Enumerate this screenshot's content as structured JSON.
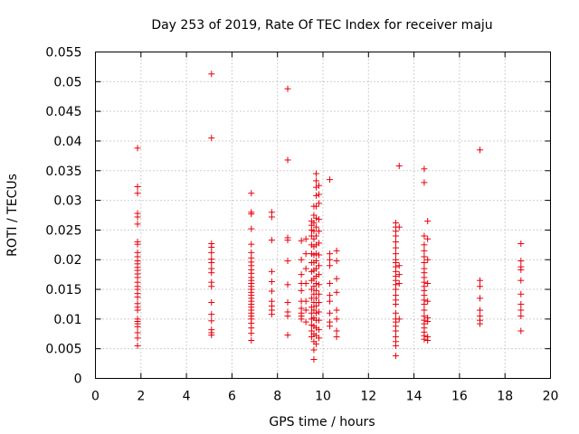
{
  "chart_data": {
    "type": "scatter",
    "title": "Day 253 of 2019, Rate Of TEC Index for receiver maju",
    "xlabel": "GPS time / hours",
    "ylabel": "ROTI / TECUs",
    "xlim": [
      0,
      20
    ],
    "ylim": [
      0,
      0.055
    ],
    "xticks": [
      0,
      2,
      4,
      6,
      8,
      10,
      12,
      14,
      16,
      18,
      20
    ],
    "yticks": [
      0,
      0.005,
      0.01,
      0.015,
      0.02,
      0.025,
      0.03,
      0.035,
      0.04,
      0.045,
      0.05,
      0.055
    ],
    "xtick_labels": [
      "0",
      "2",
      "4",
      "6",
      "8",
      "10",
      "12",
      "14",
      "16",
      "18",
      "20"
    ],
    "ytick_labels": [
      "0",
      "0.005",
      "0.01",
      "0.015",
      "0.02",
      "0.025",
      "0.03",
      "0.035",
      "0.04",
      "0.045",
      "0.05",
      "0.055"
    ],
    "grid": true,
    "marker": "+",
    "color": "#e8000b",
    "series": [
      {
        "name": "ROTI",
        "points": [
          [
            1.85,
            0.0388
          ],
          [
            1.85,
            0.0323
          ],
          [
            1.85,
            0.0312
          ],
          [
            1.85,
            0.0278
          ],
          [
            1.85,
            0.0272
          ],
          [
            1.85,
            0.026
          ],
          [
            1.85,
            0.023
          ],
          [
            1.85,
            0.0226
          ],
          [
            1.85,
            0.0212
          ],
          [
            1.85,
            0.0205
          ],
          [
            1.85,
            0.0198
          ],
          [
            1.85,
            0.0193
          ],
          [
            1.85,
            0.0187
          ],
          [
            1.85,
            0.0182
          ],
          [
            1.85,
            0.0176
          ],
          [
            1.85,
            0.017
          ],
          [
            1.85,
            0.0162
          ],
          [
            1.85,
            0.0155
          ],
          [
            1.85,
            0.015
          ],
          [
            1.85,
            0.0143
          ],
          [
            1.85,
            0.0137
          ],
          [
            1.85,
            0.0126
          ],
          [
            1.85,
            0.012
          ],
          [
            1.85,
            0.0115
          ],
          [
            1.85,
            0.01
          ],
          [
            1.85,
            0.0096
          ],
          [
            1.85,
            0.0092
          ],
          [
            1.85,
            0.0087
          ],
          [
            1.85,
            0.0077
          ],
          [
            1.85,
            0.0068
          ],
          [
            1.85,
            0.0055
          ],
          [
            5.1,
            0.0513
          ],
          [
            5.1,
            0.0405
          ],
          [
            5.1,
            0.0227
          ],
          [
            5.1,
            0.0221
          ],
          [
            5.1,
            0.0212
          ],
          [
            5.1,
            0.0201
          ],
          [
            5.1,
            0.0195
          ],
          [
            5.1,
            0.0185
          ],
          [
            5.1,
            0.0178
          ],
          [
            5.1,
            0.0162
          ],
          [
            5.1,
            0.0155
          ],
          [
            5.1,
            0.0128
          ],
          [
            5.1,
            0.0108
          ],
          [
            5.1,
            0.0097
          ],
          [
            5.1,
            0.0082
          ],
          [
            5.1,
            0.0077
          ],
          [
            5.1,
            0.0073
          ],
          [
            6.85,
            0.0312
          ],
          [
            6.85,
            0.028
          ],
          [
            6.85,
            0.0277
          ],
          [
            6.85,
            0.0252
          ],
          [
            6.85,
            0.0226
          ],
          [
            6.85,
            0.0212
          ],
          [
            6.85,
            0.0203
          ],
          [
            6.85,
            0.0196
          ],
          [
            6.85,
            0.019
          ],
          [
            6.85,
            0.0183
          ],
          [
            6.85,
            0.0177
          ],
          [
            6.85,
            0.017
          ],
          [
            6.85,
            0.0165
          ],
          [
            6.85,
            0.016
          ],
          [
            6.85,
            0.0155
          ],
          [
            6.85,
            0.015
          ],
          [
            6.85,
            0.0145
          ],
          [
            6.85,
            0.014
          ],
          [
            6.85,
            0.0135
          ],
          [
            6.85,
            0.013
          ],
          [
            6.85,
            0.0125
          ],
          [
            6.85,
            0.012
          ],
          [
            6.85,
            0.0115
          ],
          [
            6.85,
            0.011
          ],
          [
            6.85,
            0.0105
          ],
          [
            6.85,
            0.01
          ],
          [
            6.85,
            0.0093
          ],
          [
            6.85,
            0.0085
          ],
          [
            6.85,
            0.0076
          ],
          [
            6.85,
            0.0064
          ],
          [
            7.75,
            0.028
          ],
          [
            7.75,
            0.0272
          ],
          [
            7.75,
            0.0233
          ],
          [
            7.75,
            0.018
          ],
          [
            7.75,
            0.0163
          ],
          [
            7.75,
            0.0147
          ],
          [
            7.75,
            0.013
          ],
          [
            7.75,
            0.0122
          ],
          [
            7.75,
            0.0115
          ],
          [
            7.75,
            0.0108
          ],
          [
            8.45,
            0.0488
          ],
          [
            8.45,
            0.0368
          ],
          [
            8.45,
            0.0237
          ],
          [
            8.45,
            0.0233
          ],
          [
            8.45,
            0.0198
          ],
          [
            8.45,
            0.0158
          ],
          [
            8.45,
            0.0128
          ],
          [
            8.45,
            0.0112
          ],
          [
            8.45,
            0.0105
          ],
          [
            8.45,
            0.0073
          ],
          [
            9.05,
            0.0232
          ],
          [
            9.05,
            0.02
          ],
          [
            9.05,
            0.0175
          ],
          [
            9.05,
            0.016
          ],
          [
            9.05,
            0.0148
          ],
          [
            9.05,
            0.013
          ],
          [
            9.05,
            0.0118
          ],
          [
            9.05,
            0.011
          ],
          [
            9.05,
            0.0105
          ],
          [
            9.05,
            0.01
          ],
          [
            9.25,
            0.0235
          ],
          [
            9.25,
            0.021
          ],
          [
            9.25,
            0.0185
          ],
          [
            9.25,
            0.016
          ],
          [
            9.25,
            0.013
          ],
          [
            9.25,
            0.0115
          ],
          [
            9.25,
            0.0095
          ],
          [
            9.5,
            0.0265
          ],
          [
            9.5,
            0.0258
          ],
          [
            9.5,
            0.025
          ],
          [
            9.5,
            0.024
          ],
          [
            9.5,
            0.0225
          ],
          [
            9.5,
            0.021
          ],
          [
            9.5,
            0.0195
          ],
          [
            9.5,
            0.018
          ],
          [
            9.5,
            0.0165
          ],
          [
            9.5,
            0.015
          ],
          [
            9.5,
            0.0135
          ],
          [
            9.5,
            0.012
          ],
          [
            9.5,
            0.011
          ],
          [
            9.5,
            0.01
          ],
          [
            9.5,
            0.009
          ],
          [
            9.5,
            0.008
          ],
          [
            9.5,
            0.007
          ],
          [
            9.6,
            0.029
          ],
          [
            9.6,
            0.0275
          ],
          [
            9.6,
            0.0262
          ],
          [
            9.6,
            0.0248
          ],
          [
            9.6,
            0.0235
          ],
          [
            9.6,
            0.0222
          ],
          [
            9.6,
            0.0208
          ],
          [
            9.6,
            0.0195
          ],
          [
            9.6,
            0.0182
          ],
          [
            9.6,
            0.0168
          ],
          [
            9.6,
            0.0155
          ],
          [
            9.6,
            0.0142
          ],
          [
            9.6,
            0.0128
          ],
          [
            9.6,
            0.0115
          ],
          [
            9.6,
            0.0102
          ],
          [
            9.6,
            0.0088
          ],
          [
            9.6,
            0.0075
          ],
          [
            9.6,
            0.0062
          ],
          [
            9.6,
            0.0048
          ],
          [
            9.6,
            0.0032
          ],
          [
            9.7,
            0.0345
          ],
          [
            9.7,
            0.0333
          ],
          [
            9.7,
            0.0322
          ],
          [
            9.7,
            0.0308
          ],
          [
            9.7,
            0.029
          ],
          [
            9.7,
            0.027
          ],
          [
            9.7,
            0.0255
          ],
          [
            9.7,
            0.024
          ],
          [
            9.7,
            0.0225
          ],
          [
            9.7,
            0.021
          ],
          [
            9.7,
            0.0198
          ],
          [
            9.7,
            0.0185
          ],
          [
            9.7,
            0.0172
          ],
          [
            9.7,
            0.016
          ],
          [
            9.7,
            0.0148
          ],
          [
            9.7,
            0.0135
          ],
          [
            9.7,
            0.0122
          ],
          [
            9.7,
            0.011
          ],
          [
            9.7,
            0.0098
          ],
          [
            9.7,
            0.0085
          ],
          [
            9.7,
            0.0072
          ],
          [
            9.7,
            0.0058
          ],
          [
            9.82,
            0.0325
          ],
          [
            9.82,
            0.031
          ],
          [
            9.82,
            0.0295
          ],
          [
            9.82,
            0.0268
          ],
          [
            9.82,
            0.0248
          ],
          [
            9.82,
            0.0228
          ],
          [
            9.82,
            0.0208
          ],
          [
            9.82,
            0.019
          ],
          [
            9.82,
            0.0175
          ],
          [
            9.82,
            0.0158
          ],
          [
            9.82,
            0.0142
          ],
          [
            9.82,
            0.0128
          ],
          [
            9.82,
            0.0112
          ],
          [
            9.82,
            0.0098
          ],
          [
            9.82,
            0.0082
          ],
          [
            9.82,
            0.0068
          ],
          [
            10.3,
            0.0335
          ],
          [
            10.3,
            0.021
          ],
          [
            10.3,
            0.02
          ],
          [
            10.3,
            0.019
          ],
          [
            10.3,
            0.016
          ],
          [
            10.3,
            0.014
          ],
          [
            10.3,
            0.013
          ],
          [
            10.3,
            0.011
          ],
          [
            10.3,
            0.0095
          ],
          [
            10.3,
            0.0088
          ],
          [
            10.6,
            0.0215
          ],
          [
            10.6,
            0.0198
          ],
          [
            10.6,
            0.0168
          ],
          [
            10.6,
            0.0145
          ],
          [
            10.6,
            0.0115
          ],
          [
            10.6,
            0.01
          ],
          [
            10.6,
            0.008
          ],
          [
            10.6,
            0.007
          ],
          [
            13.2,
            0.0262
          ],
          [
            13.2,
            0.0255
          ],
          [
            13.2,
            0.0248
          ],
          [
            13.2,
            0.024
          ],
          [
            13.2,
            0.023
          ],
          [
            13.2,
            0.022
          ],
          [
            13.2,
            0.021
          ],
          [
            13.2,
            0.02
          ],
          [
            13.2,
            0.0195
          ],
          [
            13.2,
            0.0188
          ],
          [
            13.2,
            0.018
          ],
          [
            13.2,
            0.0172
          ],
          [
            13.2,
            0.0165
          ],
          [
            13.2,
            0.0158
          ],
          [
            13.2,
            0.015
          ],
          [
            13.2,
            0.014
          ],
          [
            13.2,
            0.0132
          ],
          [
            13.2,
            0.0125
          ],
          [
            13.2,
            0.011
          ],
          [
            13.2,
            0.01
          ],
          [
            13.2,
            0.0095
          ],
          [
            13.2,
            0.0088
          ],
          [
            13.2,
            0.008
          ],
          [
            13.2,
            0.007
          ],
          [
            13.2,
            0.0062
          ],
          [
            13.2,
            0.0055
          ],
          [
            13.2,
            0.0038
          ],
          [
            13.35,
            0.0358
          ],
          [
            13.35,
            0.0255
          ],
          [
            13.35,
            0.019
          ],
          [
            13.35,
            0.0175
          ],
          [
            13.35,
            0.016
          ],
          [
            13.35,
            0.01
          ],
          [
            14.45,
            0.0353
          ],
          [
            14.45,
            0.033
          ],
          [
            14.45,
            0.024
          ],
          [
            14.45,
            0.0225
          ],
          [
            14.45,
            0.0215
          ],
          [
            14.45,
            0.0205
          ],
          [
            14.45,
            0.0195
          ],
          [
            14.45,
            0.0185
          ],
          [
            14.45,
            0.0178
          ],
          [
            14.45,
            0.017
          ],
          [
            14.45,
            0.0162
          ],
          [
            14.45,
            0.0155
          ],
          [
            14.45,
            0.0148
          ],
          [
            14.45,
            0.014
          ],
          [
            14.45,
            0.0132
          ],
          [
            14.45,
            0.0125
          ],
          [
            14.45,
            0.0115
          ],
          [
            14.45,
            0.0105
          ],
          [
            14.45,
            0.0098
          ],
          [
            14.45,
            0.0092
          ],
          [
            14.45,
            0.0085
          ],
          [
            14.45,
            0.0078
          ],
          [
            14.45,
            0.0072
          ],
          [
            14.45,
            0.0066
          ],
          [
            14.6,
            0.0265
          ],
          [
            14.6,
            0.0235
          ],
          [
            14.6,
            0.02
          ],
          [
            14.6,
            0.016
          ],
          [
            14.6,
            0.013
          ],
          [
            14.6,
            0.0102
          ],
          [
            14.6,
            0.0096
          ],
          [
            14.6,
            0.007
          ],
          [
            14.6,
            0.0064
          ],
          [
            16.9,
            0.0385
          ],
          [
            16.9,
            0.0165
          ],
          [
            16.9,
            0.0155
          ],
          [
            16.9,
            0.0135
          ],
          [
            16.9,
            0.0115
          ],
          [
            16.9,
            0.0105
          ],
          [
            16.9,
            0.0098
          ],
          [
            16.9,
            0.0092
          ],
          [
            18.7,
            0.0227
          ],
          [
            18.7,
            0.0198
          ],
          [
            18.7,
            0.0188
          ],
          [
            18.7,
            0.0183
          ],
          [
            18.7,
            0.0165
          ],
          [
            18.7,
            0.0142
          ],
          [
            18.7,
            0.0125
          ],
          [
            18.7,
            0.0115
          ],
          [
            18.7,
            0.0105
          ],
          [
            18.7,
            0.008
          ]
        ]
      }
    ]
  }
}
